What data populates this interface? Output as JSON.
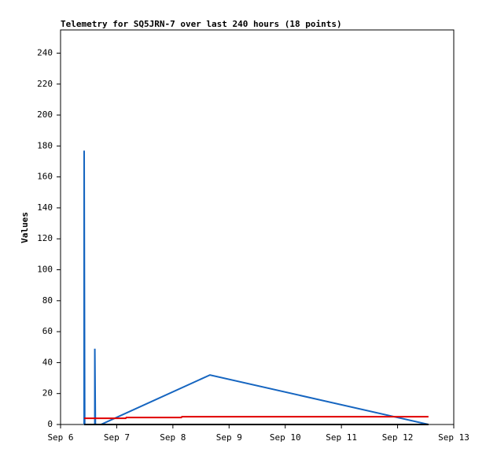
{
  "chart_data": {
    "type": "line",
    "title": "Telemetry for SQ5JRN-7 over last 240 hours (18 points)",
    "y_label": "Values",
    "xlim": [
      6,
      13
    ],
    "xticks": [
      {
        "value": 6,
        "label": "Sep 6"
      },
      {
        "value": 7,
        "label": "Sep 7"
      },
      {
        "value": 8,
        "label": "Sep 8"
      },
      {
        "value": 9,
        "label": "Sep 9"
      },
      {
        "value": 10,
        "label": "Sep 10"
      },
      {
        "value": 11,
        "label": "Sep 11"
      },
      {
        "value": 12,
        "label": "Sep 12"
      },
      {
        "value": 13,
        "label": "Sep 13"
      }
    ],
    "ylim": [
      0,
      255
    ],
    "yticks": [
      0,
      20,
      40,
      60,
      80,
      100,
      120,
      140,
      160,
      180,
      200,
      220,
      240
    ],
    "series": [
      {
        "color": "#1565c0",
        "x": [
          6.42,
          6.42,
          6.43,
          6.61,
          6.61,
          6.62,
          6.72,
          8.66,
          12.55
        ],
        "values": [
          0,
          177,
          0,
          0,
          49,
          0,
          0,
          32,
          0
        ]
      },
      {
        "color": "#e00000",
        "x": [
          6.42,
          7.16,
          7.17,
          8.15,
          8.16,
          12.55
        ],
        "values": [
          4,
          4,
          4.5,
          4.5,
          5,
          5
        ]
      },
      {
        "color": "#000000",
        "x": [
          6.42,
          12.55
        ],
        "values": [
          0,
          0
        ]
      }
    ]
  }
}
